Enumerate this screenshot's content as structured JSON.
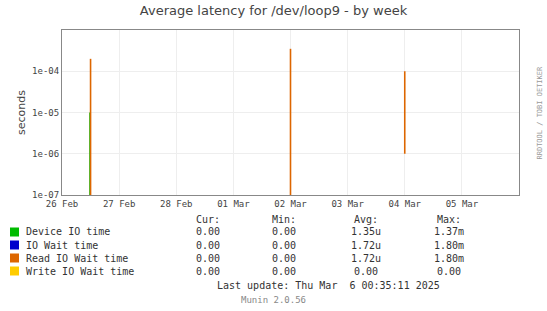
{
  "chart_data": {
    "type": "line",
    "title": "Average latency for /dev/loop9 - by week",
    "y_label": "seconds",
    "log": "y",
    "grid": true,
    "xlim": [
      1740441600,
      1741132800
    ],
    "xticks": [
      {
        "value": 1740441600,
        "label": "26 Feb"
      },
      {
        "value": 1740528000,
        "label": "27 Feb"
      },
      {
        "value": 1740614400,
        "label": "28 Feb"
      },
      {
        "value": 1740700800,
        "label": "01 Mar"
      },
      {
        "value": 1740787200,
        "label": "02 Mar"
      },
      {
        "value": 1740873600,
        "label": "03 Mar"
      },
      {
        "value": 1740960000,
        "label": "04 Mar"
      },
      {
        "value": 1741046400,
        "label": "05 Mar"
      }
    ],
    "ylim": [
      1e-07,
      0.001
    ],
    "yticks": [
      {
        "value": 1e-07,
        "label": "1e-07"
      },
      {
        "value": 1e-06,
        "label": "1e-06"
      },
      {
        "value": 1e-05,
        "label": "1e-05"
      },
      {
        "value": 0.0001,
        "label": "1e-04"
      }
    ],
    "stats_headers": [
      "Cur:",
      "Min:",
      "Avg:",
      "Max:"
    ],
    "series": [
      {
        "name": "Device IO time",
        "color": "#00bb00",
        "x": [
          1740484000
        ],
        "y_bottom": [
          1e-07
        ],
        "values": [
          1e-05
        ],
        "stats": [
          "0.00",
          "0.00",
          "1.35u",
          "1.37m"
        ]
      },
      {
        "name": "IO Wait time",
        "color": "#0000cc",
        "x": [],
        "y_bottom": [],
        "values": [],
        "stats": [
          "0.00",
          "0.00",
          "1.72u",
          "1.80m"
        ]
      },
      {
        "name": "Read IO Wait time",
        "color": "#dd6600",
        "x": [
          1740484800,
          1740787200,
          1740960000
        ],
        "y_bottom": [
          1e-07,
          1e-07,
          1e-06
        ],
        "values": [
          0.0002,
          0.00035,
          0.0001
        ],
        "stats": [
          "0.00",
          "0.00",
          "1.72u",
          "1.80m"
        ]
      },
      {
        "name": "Write IO Wait time",
        "color": "#ffcc00",
        "x": [],
        "y_bottom": [],
        "values": [],
        "stats": [
          "0.00",
          "0.00",
          "0.00",
          "0.00"
        ]
      }
    ],
    "last_update": "Last update: Thu Mar  6 00:35:11 2025",
    "footer": "Munin 2.0.56",
    "watermark": "RRDTOOL / TOBI OETIKER"
  }
}
